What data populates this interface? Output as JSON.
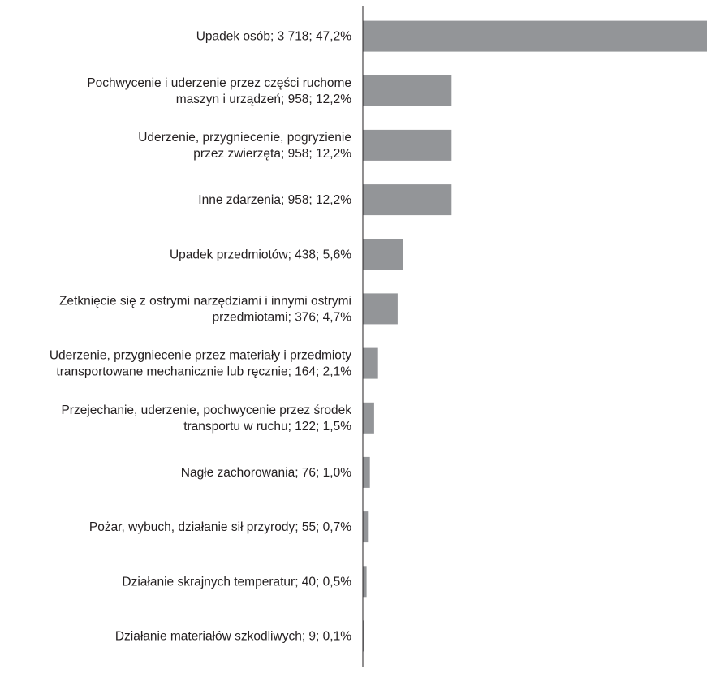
{
  "chart_data": {
    "type": "bar",
    "orientation": "horizontal",
    "title": "",
    "xlabel": "",
    "ylabel": "",
    "grid": false,
    "legend": "none",
    "bar_color": "#939598",
    "axis_color": "#231f20",
    "text_color": "#231f20",
    "xlim": [
      0,
      3718
    ],
    "categories": [
      [
        "Upadek osób; 3 718; 47,2%"
      ],
      [
        "Pochwycenie i uderzenie przez części ruchome",
        "maszyn i urządzeń; 958; 12,2%"
      ],
      [
        "Uderzenie, przygniecenie, pogryzienie",
        "przez zwierzęta; 958; 12,2%"
      ],
      [
        "Inne zdarzenia; 958; 12,2%"
      ],
      [
        "Upadek przedmiotów; 438; 5,6%"
      ],
      [
        "Zetknięcie się z ostrymi narzędziami i innymi ostrymi",
        "przedmiotami; 376; 4,7%"
      ],
      [
        "Uderzenie, przygniecenie przez materiały i przedmioty",
        "transportowane mechanicznie lub ręcznie; 164; 2,1%"
      ],
      [
        "Przejechanie, uderzenie, pochwycenie przez środek",
        "transportu w ruchu; 122; 1,5%"
      ],
      [
        "Nagłe zachorowania; 76; 1,0%"
      ],
      [
        "Pożar, wybuch, działanie sił przyrody; 55; 0,7%"
      ],
      [
        "Działanie skrajnych temperatur; 40; 0,5%"
      ],
      [
        "Działanie materiałów szkodliwych; 9; 0,1%"
      ]
    ],
    "values": [
      3718,
      958,
      958,
      958,
      438,
      376,
      164,
      122,
      76,
      55,
      40,
      9
    ]
  }
}
